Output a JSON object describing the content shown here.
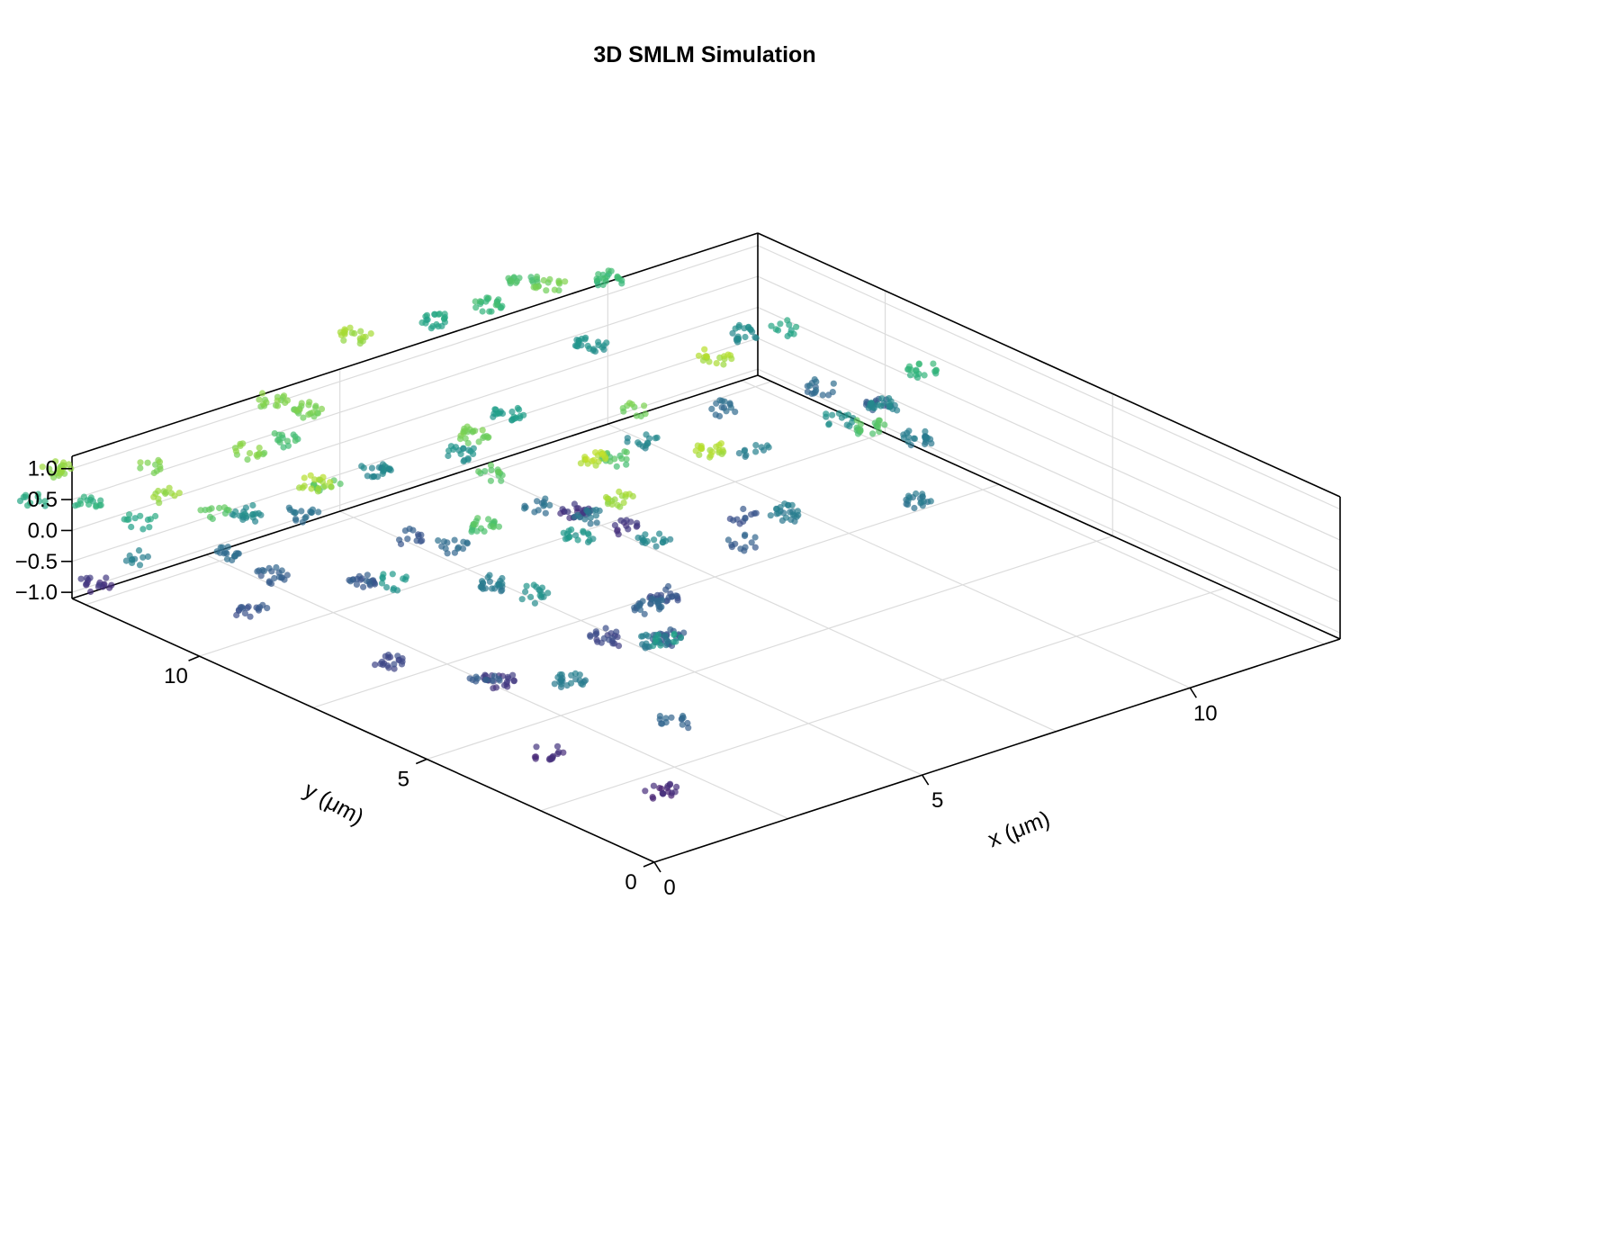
{
  "chart_data": {
    "type": "scatter",
    "title": "3D SMLM Simulation",
    "xlabel": "x (μm)",
    "ylabel": "y (μm)",
    "zlabel": "",
    "xlim": [
      0,
      12.8
    ],
    "ylim": [
      0,
      12.8
    ],
    "zlim": [
      -1.1,
      1.2
    ],
    "x_ticks": [
      {
        "value": 0,
        "label": "0"
      },
      {
        "value": 5,
        "label": "5"
      },
      {
        "value": 10,
        "label": "10"
      }
    ],
    "y_ticks": [
      {
        "value": 0,
        "label": "0"
      },
      {
        "value": 5,
        "label": "5"
      },
      {
        "value": 10,
        "label": "10"
      }
    ],
    "z_ticks": [
      {
        "value": -1.0,
        "label": "−1.0"
      },
      {
        "value": -0.5,
        "label": "−0.5"
      },
      {
        "value": 0.0,
        "label": "0.0"
      },
      {
        "value": 0.5,
        "label": "0.5"
      },
      {
        "value": 1.0,
        "label": "1.0"
      }
    ],
    "grid": true,
    "colormap": "viridis",
    "color_by": "z",
    "colormap_stops": [
      "#440154",
      "#482878",
      "#3e4989",
      "#31688e",
      "#26828e",
      "#1f9e89",
      "#35b779",
      "#6ece58",
      "#b5de2b",
      "#fde725"
    ],
    "marker_alpha": 0.7,
    "clusters": [
      {
        "x": 6.5,
        "y": 14.2,
        "z": 0.85
      },
      {
        "x": 4.2,
        "y": 13.3,
        "z": 0.75
      },
      {
        "x": 4.4,
        "y": 12.8,
        "z": 0.7
      },
      {
        "x": 3.8,
        "y": 12.5,
        "z": 0.5
      },
      {
        "x": 2.7,
        "y": 12.1,
        "z": 0.75
      },
      {
        "x": 8.6,
        "y": 15.0,
        "z": 0.25
      },
      {
        "x": 9.3,
        "y": 14.6,
        "z": 0.45
      },
      {
        "x": 10.1,
        "y": 14.8,
        "z": 0.55
      },
      {
        "x": 10.0,
        "y": 14.1,
        "z": 0.7
      },
      {
        "x": 11.2,
        "y": 14.2,
        "z": 0.45
      },
      {
        "x": 10.0,
        "y": 13.2,
        "z": 0.05
      },
      {
        "x": 7.0,
        "y": 10.0,
        "z": -0.75
      },
      {
        "x": 6.0,
        "y": 9.7,
        "z": -0.25
      },
      {
        "x": 12.0,
        "y": 12.2,
        "z": 0.0
      },
      {
        "x": 12.2,
        "y": 11.5,
        "z": 0.25
      },
      {
        "x": 12.0,
        "y": 10.5,
        "z": -0.3
      },
      {
        "x": 12.4,
        "y": 9.7,
        "z": -0.45
      },
      {
        "x": 11.9,
        "y": 9.0,
        "z": -0.05
      },
      {
        "x": 12.5,
        "y": 8.8,
        "z": 0.4
      },
      {
        "x": 10.4,
        "y": 10.8,
        "z": -0.3
      },
      {
        "x": 10.9,
        "y": 8.8,
        "z": 0.05
      },
      {
        "x": 9.8,
        "y": 10.2,
        "z": 0.9
      },
      {
        "x": 9.5,
        "y": 9.0,
        "z": -0.1
      },
      {
        "x": 11.6,
        "y": 7.9,
        "z": -0.15
      },
      {
        "x": 10.3,
        "y": 7.4,
        "z": 0.55
      },
      {
        "x": 10.2,
        "y": 6.2,
        "z": -0.2
      },
      {
        "x": 7.3,
        "y": 11.8,
        "z": 0.15
      },
      {
        "x": 8.4,
        "y": 10.2,
        "z": -0.05
      },
      {
        "x": 8.0,
        "y": 9.8,
        "z": 0.7
      },
      {
        "x": 7.2,
        "y": 9.1,
        "z": -0.75
      },
      {
        "x": 7.5,
        "y": 7.6,
        "z": 0.9
      },
      {
        "x": 6.8,
        "y": 8.9,
        "z": 0.55
      },
      {
        "x": 7.6,
        "y": 7.0,
        "z": -0.4
      },
      {
        "x": 6.2,
        "y": 8.8,
        "z": -0.2
      },
      {
        "x": 6.0,
        "y": 8.4,
        "z": 0.95
      },
      {
        "x": 6.2,
        "y": 7.3,
        "z": -0.05
      },
      {
        "x": 5.2,
        "y": 7.8,
        "z": 0.1
      },
      {
        "x": 5.4,
        "y": 7.1,
        "z": 0.85
      },
      {
        "x": 5.6,
        "y": 6.4,
        "z": -0.5
      },
      {
        "x": 5.0,
        "y": 6.0,
        "z": -0.35
      },
      {
        "x": 8.4,
        "y": 7.9,
        "z": -0.5
      },
      {
        "x": 8.4,
        "y": 7.0,
        "z": -0.15
      },
      {
        "x": 3.4,
        "y": 6.7,
        "z": 0.05
      },
      {
        "x": 4.6,
        "y": 5.1,
        "z": -0.45
      },
      {
        "x": 4.1,
        "y": 5.9,
        "z": -0.6
      },
      {
        "x": 3.9,
        "y": 4.6,
        "z": -0.15
      },
      {
        "x": 3.6,
        "y": 4.0,
        "z": 0.15
      },
      {
        "x": 2.1,
        "y": 5.9,
        "z": -0.7
      },
      {
        "x": 1.6,
        "y": 5.6,
        "z": -0.45
      },
      {
        "x": 2.0,
        "y": 4.2,
        "z": -0.15
      },
      {
        "x": 1.0,
        "y": 3.5,
        "z": -0.8
      },
      {
        "x": 2.5,
        "y": 2.5,
        "z": -0.35
      },
      {
        "x": 1.4,
        "y": 1.5,
        "z": -0.85
      },
      {
        "x": 2.1,
        "y": 8.2,
        "z": 0.1
      },
      {
        "x": 1.2,
        "y": 7.2,
        "z": -0.6
      },
      {
        "x": 3.8,
        "y": 8.2,
        "z": 0.55
      },
      {
        "x": 3.5,
        "y": 7.7,
        "z": -0.15
      },
      {
        "x": 4.2,
        "y": 9.4,
        "z": -0.3
      },
      {
        "x": 5.0,
        "y": 9.5,
        "z": 0.6
      },
      {
        "x": 4.2,
        "y": 10.3,
        "z": -0.45
      },
      {
        "x": 5.6,
        "y": 10.6,
        "z": 0.7
      },
      {
        "x": 2.6,
        "y": 9.5,
        "z": -0.45
      },
      {
        "x": 2.4,
        "y": 10.3,
        "z": 0.9
      },
      {
        "x": 3.0,
        "y": 10.7,
        "z": 0.6
      },
      {
        "x": 1.7,
        "y": 10.4,
        "z": -0.4
      },
      {
        "x": 1.5,
        "y": 11.2,
        "z": -0.3
      },
      {
        "x": 1.1,
        "y": 10.9,
        "z": 0.6
      },
      {
        "x": 4.8,
        "y": 11.8,
        "z": -0.05
      },
      {
        "x": 6.0,
        "y": 11.3,
        "z": 0.05
      },
      {
        "x": 3.3,
        "y": 11.6,
        "z": -0.25
      },
      {
        "x": 2.3,
        "y": 11.7,
        "z": 0.0
      },
      {
        "x": 0.8,
        "y": 9.8,
        "z": -0.5
      },
      {
        "x": 0.2,
        "y": 11.5,
        "z": -0.1
      },
      {
        "x": 0.3,
        "y": 12.8,
        "z": 0.35
      },
      {
        "x": 1.3,
        "y": 12.6,
        "z": 0.75
      },
      {
        "x": 0.6,
        "y": 11.5,
        "z": 0.85
      },
      {
        "x": 0.6,
        "y": 12.0,
        "z": 0.25
      },
      {
        "x": 0.1,
        "y": 13.3,
        "z": 0.8
      },
      {
        "x": 0.0,
        "y": 14.9,
        "z": 0.8
      },
      {
        "x": -0.2,
        "y": 13.5,
        "z": 0.3
      },
      {
        "x": 0.1,
        "y": 12.4,
        "z": -0.75
      }
    ]
  }
}
